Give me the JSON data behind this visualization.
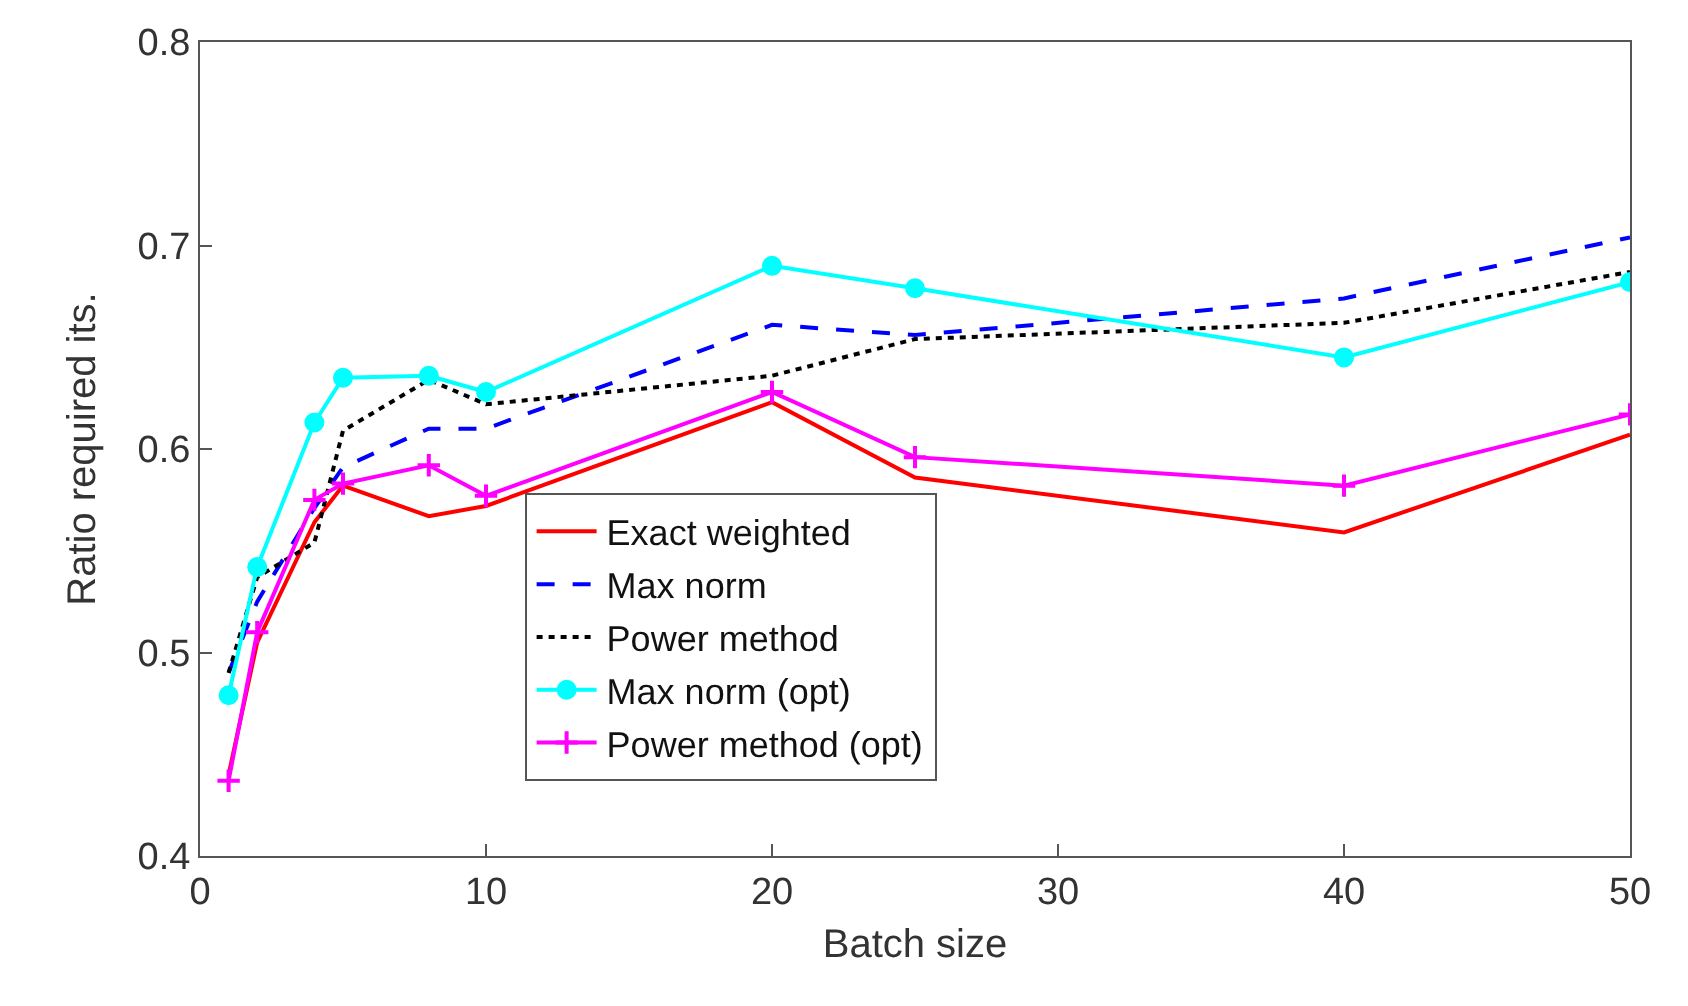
{
  "chart_data": {
    "type": "line",
    "xlabel": "Batch size",
    "ylabel": "Ratio required its.",
    "x": [
      1,
      2,
      4,
      5,
      8,
      10,
      20,
      25,
      40,
      50
    ],
    "xlim": [
      0,
      50
    ],
    "xticks": [
      0,
      10,
      20,
      30,
      40,
      50
    ],
    "ylim": [
      0.4,
      0.8
    ],
    "yticks": [
      0.4,
      0.5,
      0.6,
      0.7,
      0.8
    ],
    "legend": "bottom",
    "series": [
      {
        "name": "Exact weighted",
        "color": "#ff0000",
        "line_style": "solid",
        "marker": "none",
        "values": [
          0.44,
          0.505,
          0.564,
          0.582,
          0.567,
          0.572,
          0.623,
          0.586,
          0.559,
          0.607
        ]
      },
      {
        "name": "Max norm",
        "color": "#0000ff",
        "line_style": "dashed",
        "marker": "none",
        "values": [
          0.49,
          0.525,
          0.571,
          0.591,
          0.61,
          0.61,
          0.661,
          0.656,
          0.674,
          0.704
        ]
      },
      {
        "name": "Power method",
        "color": "#000000",
        "line_style": "dotted",
        "marker": "none",
        "values": [
          0.49,
          0.537,
          0.554,
          0.609,
          0.634,
          0.622,
          0.636,
          0.654,
          0.662,
          0.687
        ]
      },
      {
        "name": "Max norm (opt)",
        "color": "#00ffff",
        "line_style": "solid",
        "marker": "circle",
        "values": [
          0.479,
          0.542,
          0.613,
          0.635,
          0.636,
          0.628,
          0.69,
          0.679,
          0.645,
          0.682
        ]
      },
      {
        "name": "Power method (opt)",
        "color": "#ff00ff",
        "line_style": "solid",
        "marker": "cross",
        "values": [
          0.437,
          0.51,
          0.575,
          0.583,
          0.592,
          0.577,
          0.628,
          0.596,
          0.582,
          0.617
        ]
      }
    ]
  }
}
